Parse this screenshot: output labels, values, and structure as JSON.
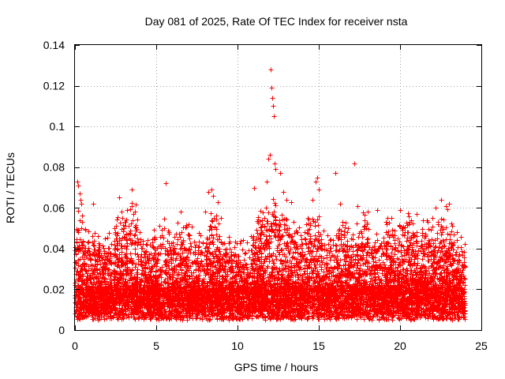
{
  "chart_data": {
    "type": "scatter",
    "title": "Day 081 of 2025, Rate Of TEC Index for receiver nsta",
    "xlabel": "GPS time / hours",
    "ylabel": "ROTI / TECUs",
    "xlim": [
      0,
      25
    ],
    "ylim": [
      0,
      0.14
    ],
    "xticks": [
      0,
      5,
      10,
      15,
      20,
      25
    ],
    "yticks": [
      0,
      0.02,
      0.04,
      0.06,
      0.08,
      0.1,
      0.12,
      0.14
    ],
    "xtick_labels": [
      "0",
      "5",
      "10",
      "15",
      "20",
      "25"
    ],
    "ytick_labels": [
      "0",
      "0.02",
      "0.04",
      "0.06",
      "0.08",
      "0.1",
      "0.12",
      "0.14"
    ],
    "grid": true,
    "marker": "+",
    "series_color": "#ff0000",
    "series": [
      {
        "name": "ROTI",
        "x": [
          0.1,
          0.15,
          0.2,
          0.3,
          0.35,
          0.4,
          0.5,
          1.1,
          1.5,
          2.5,
          2.7,
          3.0,
          3.5,
          3.7,
          5.6,
          6.5,
          7.0,
          8.0,
          8.2,
          8.4,
          8.5,
          8.8,
          9.0,
          11.0,
          11.8,
          11.9,
          12.0,
          12.05,
          12.1,
          12.15,
          12.2,
          12.25,
          12.3,
          12.35,
          12.6,
          12.8,
          13.0,
          13.3,
          13.6,
          14.3,
          14.6,
          14.8,
          14.9,
          15.0,
          16.0,
          16.3,
          16.8,
          17.2,
          17.4,
          18.0,
          18.6,
          19.2,
          20.0,
          20.5,
          21.0,
          21.4,
          22.0,
          22.2,
          22.5,
          22.8,
          23.0,
          23.5
        ],
        "y": [
          0.043,
          0.073,
          0.071,
          0.067,
          0.064,
          0.062,
          0.044,
          0.062,
          0.038,
          0.051,
          0.065,
          0.05,
          0.069,
          0.058,
          0.072,
          0.058,
          0.052,
          0.058,
          0.068,
          0.069,
          0.066,
          0.063,
          0.055,
          0.07,
          0.073,
          0.084,
          0.086,
          0.128,
          0.119,
          0.114,
          0.11,
          0.105,
          0.082,
          0.079,
          0.077,
          0.068,
          0.064,
          0.063,
          0.049,
          0.055,
          0.064,
          0.073,
          0.075,
          0.069,
          0.077,
          0.062,
          0.05,
          0.082,
          0.061,
          0.058,
          0.059,
          0.055,
          0.059,
          0.048,
          0.057,
          0.054,
          0.055,
          0.06,
          0.064,
          0.061,
          0.062,
          0.048
        ]
      }
    ],
    "background_noise": {
      "seed": 81,
      "count": 9000,
      "baseline": 0.013,
      "min": 0.003
    }
  }
}
